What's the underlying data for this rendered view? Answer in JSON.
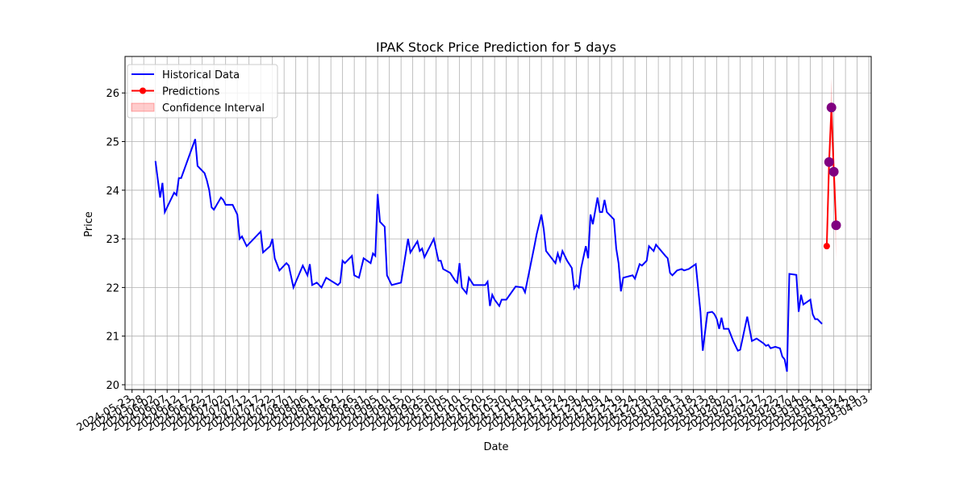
{
  "chart_data": {
    "type": "line",
    "title": "IPAK Stock Price Prediction for 5 days",
    "x_label": "Date",
    "y_label": "Price",
    "grid": true,
    "legend": "upper left",
    "xlim": [
      "2024-05-20",
      "2025-04-04"
    ],
    "ylim": [
      19.9,
      26.75
    ],
    "yticks": [
      20,
      21,
      22,
      23,
      24,
      25,
      26
    ],
    "xticks": [
      "2024-05-23",
      "2024-05-28",
      "2024-06-02",
      "2024-06-07",
      "2024-06-12",
      "2024-06-17",
      "2024-06-22",
      "2024-06-27",
      "2024-07-02",
      "2024-07-07",
      "2024-07-12",
      "2024-07-17",
      "2024-07-22",
      "2024-07-27",
      "2024-08-01",
      "2024-08-06",
      "2024-08-11",
      "2024-08-16",
      "2024-08-21",
      "2024-08-26",
      "2024-08-31",
      "2024-09-05",
      "2024-09-10",
      "2024-09-15",
      "2024-09-20",
      "2024-09-25",
      "2024-09-30",
      "2024-10-05",
      "2024-10-10",
      "2024-10-15",
      "2024-10-20",
      "2024-10-25",
      "2024-10-30",
      "2024-11-04",
      "2024-11-09",
      "2024-11-14",
      "2024-11-19",
      "2024-11-24",
      "2024-11-29",
      "2024-12-04",
      "2024-12-09",
      "2024-12-14",
      "2024-12-19",
      "2024-12-24",
      "2024-12-29",
      "2025-01-03",
      "2025-01-08",
      "2025-01-13",
      "2025-01-18",
      "2025-01-23",
      "2025-01-28",
      "2025-02-02",
      "2025-02-07",
      "2025-02-12",
      "2025-02-17",
      "2025-02-22",
      "2025-02-27",
      "2025-03-04",
      "2025-03-09",
      "2025-03-14",
      "2025-03-19",
      "2025-03-24",
      "2025-03-29",
      "2025-04-03"
    ],
    "series": [
      {
        "name": "Historical Data",
        "color": "#0000ff",
        "x": [
          "2024-06-02",
          "2024-06-04",
          "2024-06-05",
          "2024-06-06",
          "2024-06-10",
          "2024-06-11",
          "2024-06-12",
          "2024-06-13",
          "2024-06-19",
          "2024-06-20",
          "2024-06-23",
          "2024-06-24",
          "2024-06-25",
          "2024-06-26",
          "2024-06-27",
          "2024-06-30",
          "2024-07-01",
          "2024-07-02",
          "2024-07-05",
          "2024-07-07",
          "2024-07-08",
          "2024-07-09",
          "2024-07-11",
          "2024-07-17",
          "2024-07-18",
          "2024-07-21",
          "2024-07-22",
          "2024-07-23",
          "2024-07-25",
          "2024-07-28",
          "2024-07-29",
          "2024-07-31",
          "2024-08-04",
          "2024-08-06",
          "2024-08-07",
          "2024-08-08",
          "2024-08-10",
          "2024-08-12",
          "2024-08-14",
          "2024-08-19",
          "2024-08-20",
          "2024-08-21",
          "2024-08-22",
          "2024-08-25",
          "2024-08-26",
          "2024-08-28",
          "2024-08-30",
          "2024-09-02",
          "2024-09-03",
          "2024-09-04",
          "2024-09-05",
          "2024-09-06",
          "2024-09-08",
          "2024-09-09",
          "2024-09-11",
          "2024-09-15",
          "2024-09-18",
          "2024-09-19",
          "2024-09-22",
          "2024-09-23",
          "2024-09-24",
          "2024-09-25",
          "2024-09-29",
          "2024-10-01",
          "2024-10-02",
          "2024-10-03",
          "2024-10-06",
          "2024-10-08",
          "2024-10-09",
          "2024-10-10",
          "2024-10-11",
          "2024-10-13",
          "2024-10-14",
          "2024-10-16",
          "2024-10-21",
          "2024-10-22",
          "2024-10-23",
          "2024-10-24",
          "2024-10-25",
          "2024-10-27",
          "2024-10-28",
          "2024-10-30",
          "2024-11-03",
          "2024-11-06",
          "2024-11-07",
          "2024-11-11",
          "2024-11-12",
          "2024-11-14",
          "2024-11-15",
          "2024-11-16",
          "2024-11-20",
          "2024-11-21",
          "2024-11-22",
          "2024-11-23",
          "2024-11-25",
          "2024-11-27",
          "2024-11-28",
          "2024-11-29",
          "2024-11-30",
          "2024-12-01",
          "2024-12-03",
          "2024-12-04",
          "2024-12-05",
          "2024-12-06",
          "2024-12-08",
          "2024-12-09",
          "2024-12-10",
          "2024-12-11",
          "2024-12-12",
          "2024-12-15",
          "2024-12-16",
          "2024-12-17",
          "2024-12-18",
          "2024-12-19",
          "2024-12-23",
          "2024-12-24",
          "2024-12-26",
          "2024-12-27",
          "2024-12-29",
          "2024-12-30",
          "2024-12-31",
          "2025-01-01",
          "2025-01-02",
          "2025-01-06",
          "2025-01-07",
          "2025-01-08",
          "2025-01-09",
          "2025-01-11",
          "2025-01-13",
          "2025-01-14",
          "2025-01-16",
          "2025-01-19",
          "2025-01-21",
          "2025-01-22",
          "2025-01-24",
          "2025-01-26",
          "2025-01-27",
          "2025-01-28",
          "2025-01-29",
          "2025-01-30",
          "2025-01-31",
          "2025-02-02",
          "2025-02-04",
          "2025-02-06",
          "2025-02-07",
          "2025-02-10",
          "2025-02-12",
          "2025-02-14",
          "2025-02-17",
          "2025-02-18",
          "2025-02-19",
          "2025-02-20",
          "2025-02-22",
          "2025-02-24",
          "2025-02-25",
          "2025-02-26",
          "2025-02-27",
          "2025-02-28",
          "2025-03-03",
          "2025-03-04",
          "2025-03-05",
          "2025-03-06",
          "2025-03-09",
          "2025-03-10",
          "2025-03-11",
          "2025-03-12",
          "2025-03-14"
        ],
        "values": [
          24.6,
          23.85,
          24.15,
          23.55,
          23.95,
          23.9,
          24.25,
          24.25,
          25.05,
          24.5,
          24.35,
          24.2,
          24.0,
          23.65,
          23.6,
          23.85,
          23.8,
          23.7,
          23.7,
          23.5,
          23.0,
          23.05,
          22.85,
          23.15,
          22.72,
          22.85,
          23.0,
          22.6,
          22.35,
          22.5,
          22.45,
          22.0,
          22.45,
          22.25,
          22.48,
          22.05,
          22.1,
          22.0,
          22.2,
          22.05,
          22.1,
          22.55,
          22.5,
          22.65,
          22.25,
          22.2,
          22.6,
          22.5,
          22.7,
          22.65,
          23.92,
          23.35,
          23.25,
          22.25,
          22.05,
          22.1,
          23.0,
          22.72,
          22.95,
          22.75,
          22.8,
          22.62,
          23.0,
          22.55,
          22.55,
          22.38,
          22.3,
          22.15,
          22.1,
          22.5,
          22.0,
          21.88,
          22.2,
          22.05,
          22.05,
          22.12,
          21.62,
          21.85,
          21.75,
          21.62,
          21.75,
          21.75,
          22.02,
          22.0,
          21.9,
          22.85,
          23.1,
          23.5,
          23.2,
          22.75,
          22.5,
          22.7,
          22.55,
          22.75,
          22.55,
          22.4,
          21.98,
          22.05,
          22.0,
          22.4,
          22.85,
          22.6,
          23.5,
          23.3,
          23.85,
          23.55,
          23.55,
          23.8,
          23.55,
          23.4,
          22.8,
          22.5,
          21.92,
          22.2,
          22.25,
          22.18,
          22.48,
          22.45,
          22.55,
          22.85,
          22.8,
          22.75,
          22.88,
          22.65,
          22.6,
          22.3,
          22.25,
          22.35,
          22.38,
          22.35,
          22.38,
          22.48,
          21.5,
          20.7,
          21.48,
          21.5,
          21.45,
          21.35,
          21.15,
          21.38,
          21.15,
          21.15,
          20.9,
          20.7,
          20.72,
          21.4,
          20.9,
          20.95,
          20.85,
          20.8,
          20.82,
          20.75,
          20.78,
          20.75,
          20.58,
          20.52,
          20.27,
          22.28,
          22.26,
          21.5,
          21.85,
          21.65,
          21.75,
          21.45,
          21.35,
          21.35,
          21.25
        ]
      },
      {
        "name": "Predictions",
        "color": "#ff0000",
        "x": [
          "2025-03-16",
          "2025-03-17",
          "2025-03-18",
          "2025-03-19",
          "2025-03-20"
        ],
        "values": [
          22.85,
          24.58,
          25.7,
          24.38,
          23.28
        ]
      },
      {
        "color": "#800080",
        "x": [
          "2025-03-17",
          "2025-03-18",
          "2025-03-19",
          "2025-03-20"
        ],
        "values": [
          24.58,
          25.7,
          24.38,
          23.28
        ]
      }
    ],
    "band": {
      "name": "Confidence Interval",
      "color": "#ff0000",
      "lower": [
        22.85,
        24.3,
        25.1,
        24.0,
        22.55
      ],
      "upper": [
        22.85,
        24.9,
        26.3,
        24.8,
        24.0
      ]
    }
  }
}
